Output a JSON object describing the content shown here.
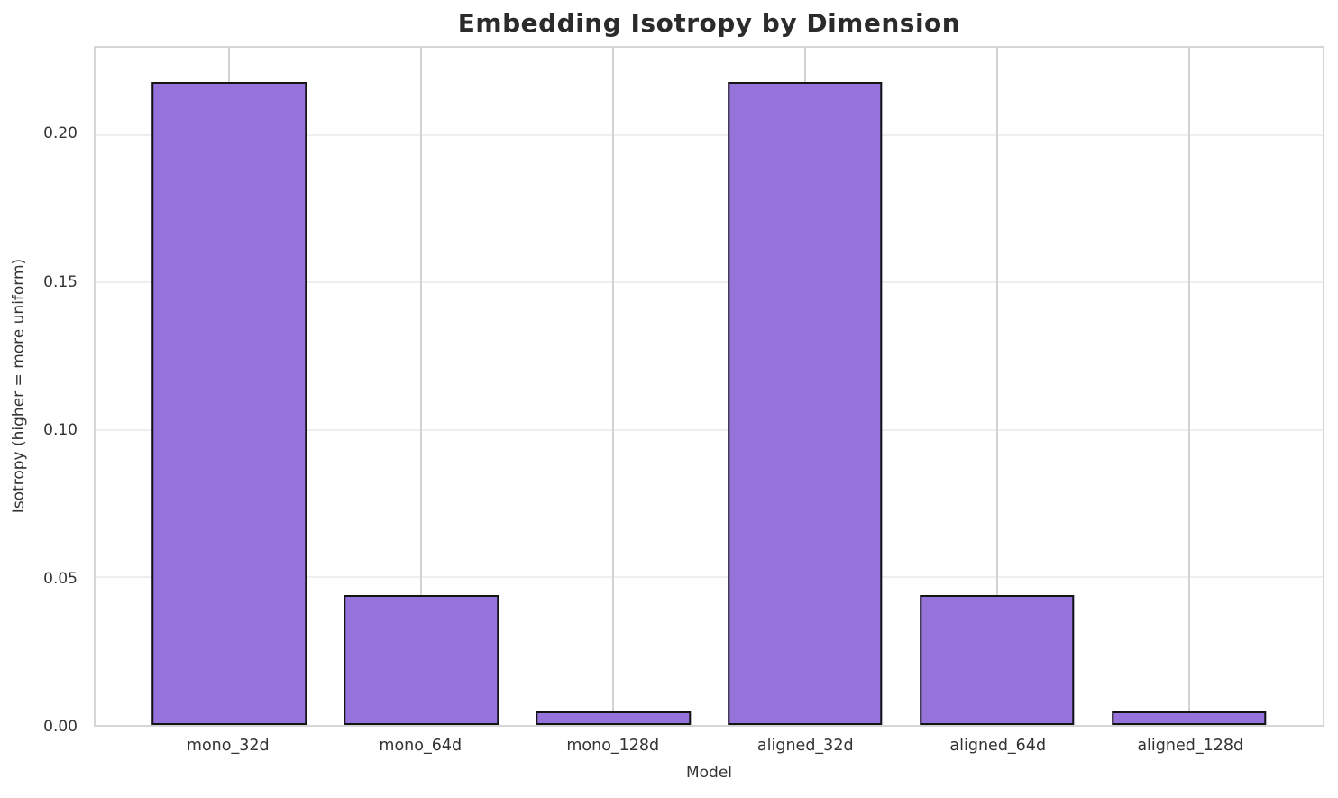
{
  "chart_data": {
    "type": "bar",
    "title": "Embedding Isotropy by Dimension",
    "xlabel": "Model",
    "ylabel": "Isotropy (higher = more uniform)",
    "categories": [
      "mono_32d",
      "mono_64d",
      "mono_128d",
      "aligned_32d",
      "aligned_64d",
      "aligned_128d"
    ],
    "values": [
      0.218,
      0.044,
      0.0046,
      0.218,
      0.044,
      0.0046
    ],
    "ylim": [
      0,
      0.2295
    ],
    "ytick_values": [
      0.0,
      0.05,
      0.1,
      0.15,
      0.2
    ],
    "ytick_labels": [
      "0.00",
      "0.05",
      "0.10",
      "0.15",
      "0.20"
    ],
    "grid": true,
    "legend": "none",
    "bar_fill_color": "#9673DB",
    "bar_edge_color": "#141414",
    "grid_x_color": "#d2d2d2",
    "grid_y_color": "#efefef",
    "spine_color": "#d5d5d5",
    "text_color": "#333333",
    "title_color": "#2b2b2b"
  }
}
